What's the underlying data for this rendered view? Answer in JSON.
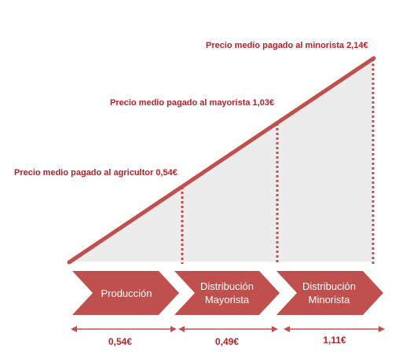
{
  "price_points": [
    {
      "label": "Precio medio pagado al agricultor 0,54€"
    },
    {
      "label": "Precio medio pagado al mayorista 1,03€"
    },
    {
      "label": "Precio medio pagado al minorista 2,14€"
    }
  ],
  "stages": [
    {
      "line1": "Producción",
      "line2": ""
    },
    {
      "line1": "Distribución",
      "line2": "Mayorista"
    },
    {
      "line1": "Distribución",
      "line2": "Minorista"
    }
  ],
  "margins": [
    {
      "value": "0,54€"
    },
    {
      "value": "0,49€"
    },
    {
      "value": "1,11€"
    }
  ],
  "colors": {
    "accent": "#b82025",
    "arrow_fill": "#c0504d",
    "area_fill": "#ececec",
    "rise_line": "#c0504d"
  }
}
